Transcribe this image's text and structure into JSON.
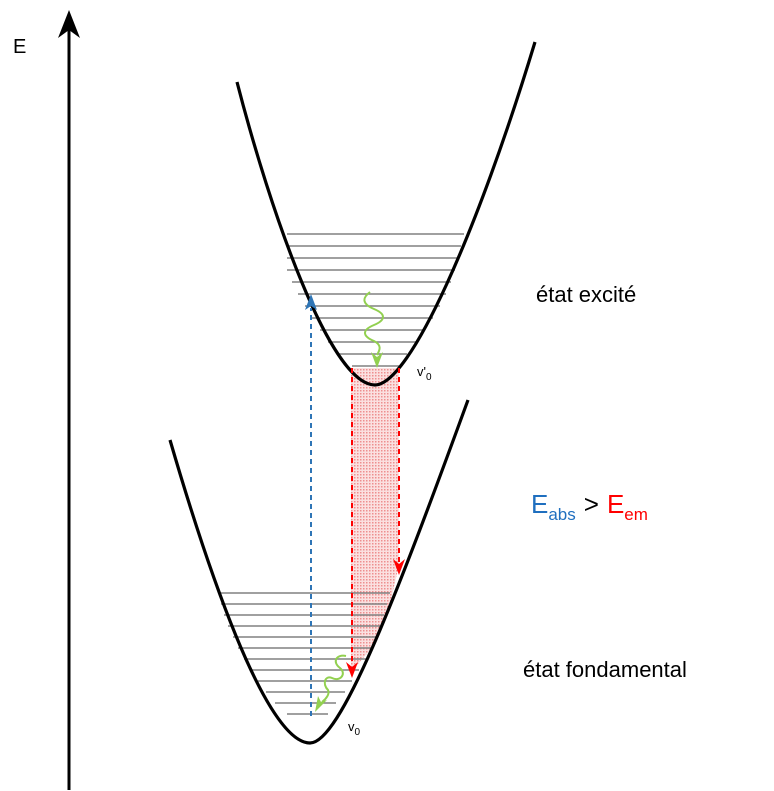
{
  "axis": {
    "label": "E"
  },
  "states": {
    "excited": "état excité",
    "ground": "état fondamental"
  },
  "levels": {
    "excited_lowest": {
      "base": "v",
      "prime": "'",
      "sub": "0"
    },
    "ground_lowest": {
      "base": "v",
      "sub": "0"
    }
  },
  "relation": {
    "abs_main": "E",
    "abs_sub": "abs",
    "op": ">",
    "em_main": "E",
    "em_sub": "em"
  },
  "colors": {
    "curve": "#000000",
    "vib_level": "#7f7f7f",
    "absorption": "#2e75b6",
    "emission": "#ff0000",
    "relaxation": "#92d050",
    "emission_band": "#f4a6a6",
    "abs_text": "#1f6fbf",
    "em_text": "#ff0000"
  }
}
